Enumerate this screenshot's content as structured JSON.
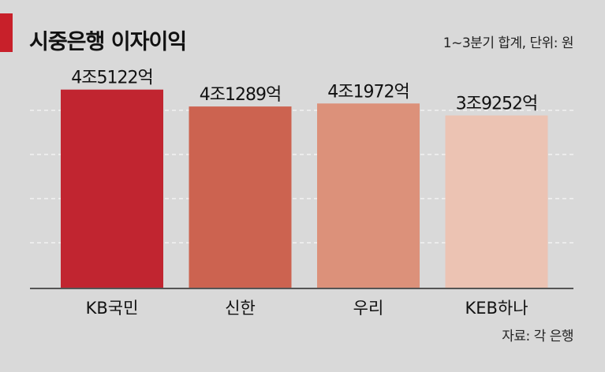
{
  "header": {
    "title": "시중은행 이자이익",
    "unit_note": "1~3분기 합계, 단위: 원",
    "source_note": "자료: 각 은행"
  },
  "colors": {
    "accent": "#c8202a",
    "background": "#d9d9d9",
    "bars": [
      "#c12530",
      "#cc6350",
      "#dc917a",
      "#ecc3b3"
    ]
  },
  "chart_data": {
    "type": "bar",
    "categories": [
      "KB국민",
      "신한",
      "우리",
      "KEB하나"
    ],
    "values": [
      45122,
      41289,
      41972,
      39252
    ],
    "value_labels": [
      "4조5122억",
      "4조1289억",
      "4조1972억",
      "3조9252억"
    ],
    "title": "시중은행 이자이익",
    "xlabel": "",
    "ylabel": "",
    "ylim": [
      0,
      49000
    ],
    "grid": true,
    "legend": "none"
  }
}
